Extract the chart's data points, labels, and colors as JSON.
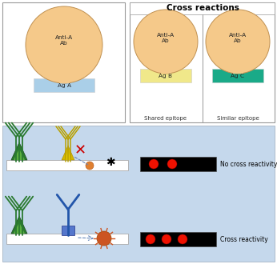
{
  "bg_bottom": "#c5d8ec",
  "circle_color": "#f5c98a",
  "ag_a_color": "#aacfe8",
  "ag_b_color": "#f0e88a",
  "ag_c_color": "#1aaa88",
  "epitope_blue": "#b8d8ee",
  "epitope_teal": "#1aaa88",
  "title_cross": "Cross reactions",
  "label_anti": "Anti-A\nAb",
  "label_aga": "Ag A",
  "label_agb": "Ag B",
  "label_agc": "Ag C",
  "label_shared": "Shared epitope",
  "label_similar": "Similar epitope",
  "label_no_cross": "No cross reactivity",
  "label_cross": "Cross reactivity",
  "dot_color": "#ee1100",
  "green_dark": "#2a7a30",
  "green_light": "#5ab040",
  "yellow_dark": "#aaaa00",
  "yellow_light": "#ddcc00",
  "blue_ab": "#2255aa",
  "blob_color": "#cc5522"
}
